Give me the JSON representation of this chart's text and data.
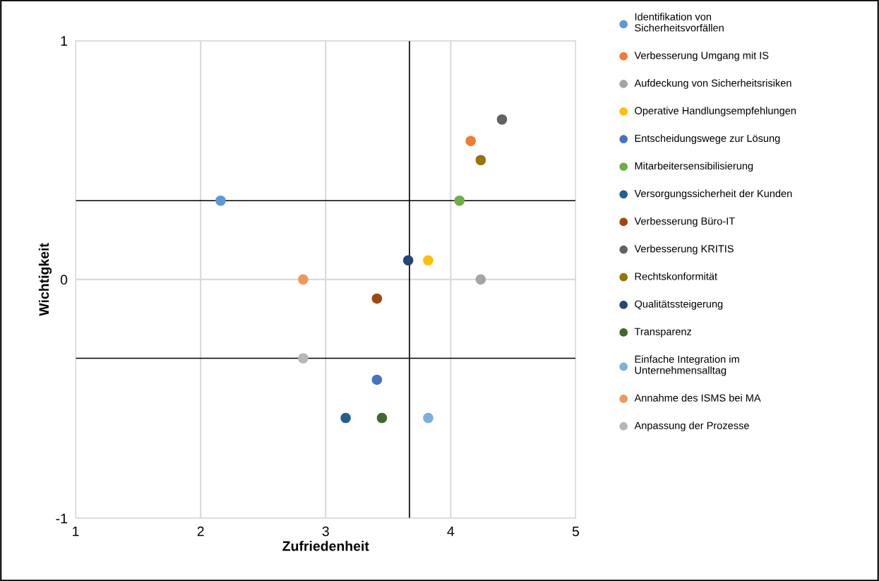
{
  "chart_data": {
    "type": "scatter",
    "xlabel": "Zufriedenheit",
    "ylabel": "Wichtigkeit",
    "xlim": [
      1,
      5
    ],
    "ylim": [
      -1,
      1
    ],
    "xticks": [
      1,
      2,
      3,
      4,
      5
    ],
    "yticks": [
      -1,
      0,
      1
    ],
    "grid": true,
    "legend": "right",
    "marker": "circle",
    "ref_lines": [
      {
        "axis": "x",
        "value": 3.67,
        "color": "#000000"
      },
      {
        "axis": "y",
        "value": 0.33,
        "color": "#000000"
      },
      {
        "axis": "y",
        "value": -0.33,
        "color": "#000000"
      }
    ],
    "series": [
      {
        "name": "Identifikation von\nSicherheitsvorfällen",
        "color": "#5b9bd5",
        "x": [
          2.16
        ],
        "values": [
          0.33
        ]
      },
      {
        "name": "Verbesserung Umgang mit IS",
        "color": "#ed7d31",
        "x": [
          4.16
        ],
        "values": [
          0.58
        ]
      },
      {
        "name": "Aufdeckung von Sicherheitsrisiken",
        "color": "#a5a5a5",
        "x": [
          4.24
        ],
        "values": [
          0
        ]
      },
      {
        "name": "Operative Handlungsempfehlungen",
        "color": "#ffc000",
        "x": [
          3.82
        ],
        "values": [
          0.08
        ]
      },
      {
        "name": "Entscheidungswege zur Lösung",
        "color": "#4472c4",
        "x": [
          3.41
        ],
        "values": [
          -0.42
        ]
      },
      {
        "name": "Mitarbeitersensibilisierung",
        "color": "#70ad47",
        "x": [
          4.07
        ],
        "values": [
          0.33
        ]
      },
      {
        "name": "Versorgungssicherheit der Kunden",
        "color": "#255e91",
        "x": [
          3.16
        ],
        "values": [
          -0.58
        ]
      },
      {
        "name": "Verbesserung Büro-IT",
        "color": "#9e480e",
        "x": [
          3.41
        ],
        "values": [
          -0.08
        ]
      },
      {
        "name": "Verbesserung KRITIS",
        "color": "#636363",
        "x": [
          4.41
        ],
        "values": [
          0.67
        ]
      },
      {
        "name": "Rechtskonformität",
        "color": "#997300",
        "x": [
          4.24
        ],
        "values": [
          0.5
        ]
      },
      {
        "name": "Qualitätssteigerung",
        "color": "#264478",
        "x": [
          3.66
        ],
        "values": [
          0.08
        ]
      },
      {
        "name": "Transparenz",
        "color": "#43682b",
        "x": [
          3.45
        ],
        "values": [
          -0.58
        ]
      },
      {
        "name": "Einfache Integration im\nUnternehmensalltag",
        "color": "#7cafdd",
        "x": [
          3.82
        ],
        "values": [
          -0.58
        ]
      },
      {
        "name": "Annahme des ISMS bei MA",
        "color": "#f1975a",
        "x": [
          2.82
        ],
        "values": [
          0
        ]
      },
      {
        "name": "Anpassung der Prozesse",
        "color": "#b7b7b7",
        "x": [
          2.82
        ],
        "values": [
          -0.33
        ]
      }
    ]
  }
}
